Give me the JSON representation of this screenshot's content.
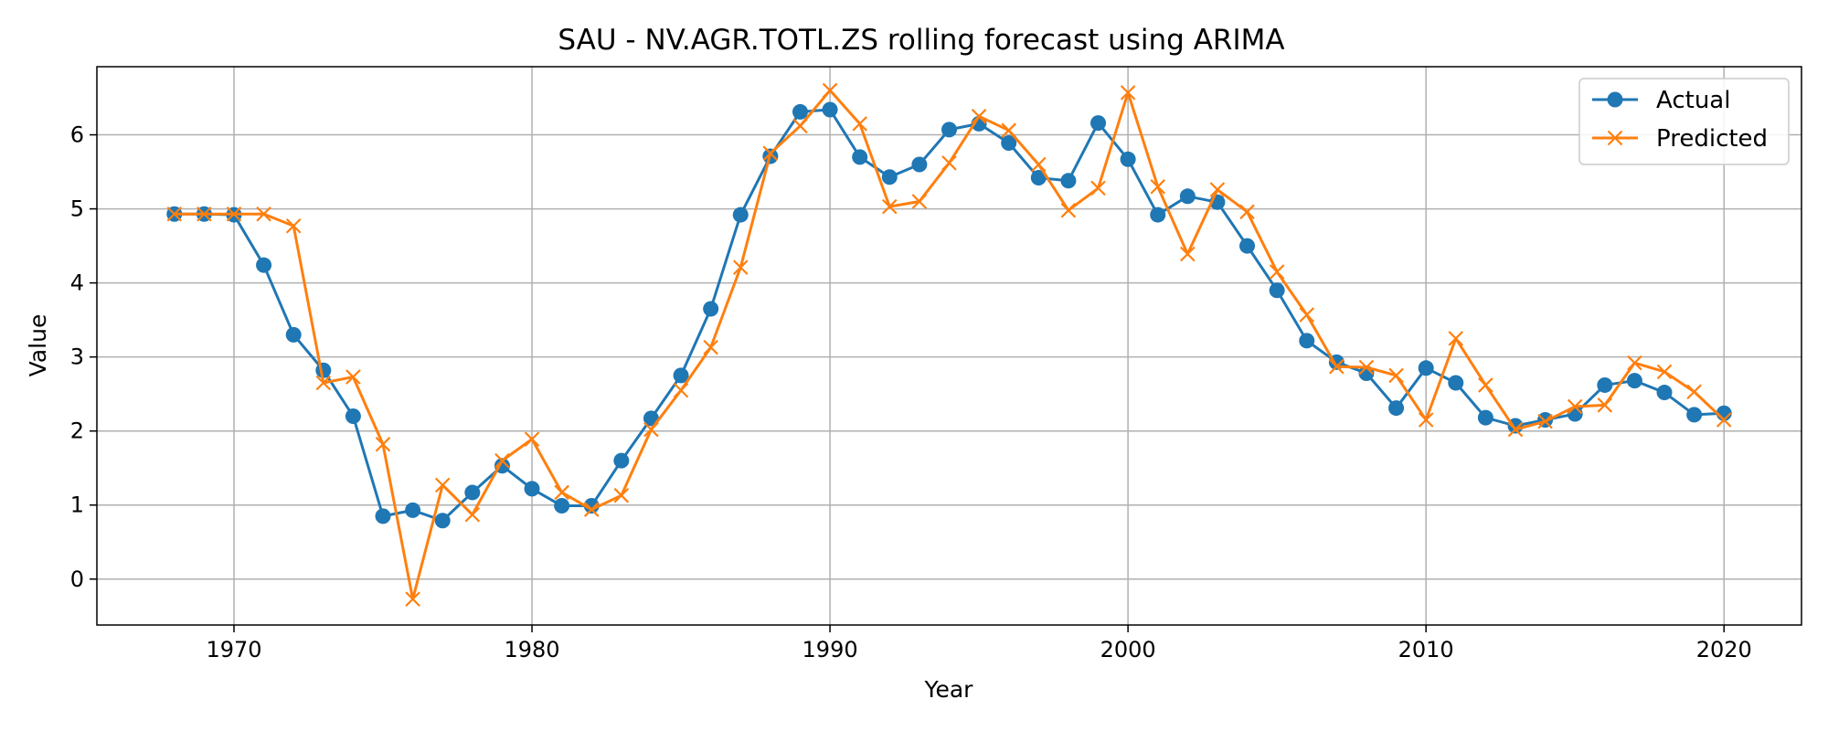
{
  "chart_data": {
    "type": "line",
    "title": "SAU - NV.AGR.TOTL.ZS rolling forecast using ARIMA",
    "xlabel": "Year",
    "ylabel": "Value",
    "xlim": [
      1965.4,
      2022.6
    ],
    "ylim": [
      -0.62,
      6.92
    ],
    "xticks": [
      1970,
      1980,
      1990,
      2000,
      2010,
      2020
    ],
    "yticks": [
      0,
      1,
      2,
      3,
      4,
      5,
      6
    ],
    "grid": true,
    "legend_position": "top-right",
    "x": [
      1968,
      1969,
      1970,
      1971,
      1972,
      1973,
      1974,
      1975,
      1976,
      1977,
      1978,
      1979,
      1980,
      1981,
      1982,
      1983,
      1984,
      1985,
      1986,
      1987,
      1988,
      1989,
      1990,
      1991,
      1992,
      1993,
      1994,
      1995,
      1996,
      1997,
      1998,
      1999,
      2000,
      2001,
      2002,
      2003,
      2004,
      2005,
      2006,
      2007,
      2008,
      2009,
      2010,
      2011,
      2012,
      2013,
      2014,
      2015,
      2016,
      2017,
      2018,
      2019,
      2020
    ],
    "series": [
      {
        "name": "Actual",
        "color": "#1f77b4",
        "marker": "circle",
        "values": [
          4.93,
          4.93,
          4.92,
          4.24,
          3.3,
          2.82,
          2.2,
          0.85,
          0.93,
          0.79,
          1.17,
          1.53,
          1.22,
          0.99,
          0.99,
          1.6,
          2.17,
          2.75,
          3.65,
          4.92,
          5.71,
          6.31,
          6.34,
          5.7,
          5.43,
          5.6,
          6.07,
          6.15,
          5.89,
          5.42,
          5.38,
          6.16,
          5.67,
          4.92,
          5.17,
          5.09,
          4.5,
          3.9,
          3.22,
          2.93,
          2.78,
          2.31,
          2.85,
          2.65,
          2.18,
          2.07,
          2.15,
          2.23,
          2.62,
          2.68,
          2.52,
          2.22,
          2.24
        ]
      },
      {
        "name": "Predicted",
        "color": "#ff7f0e",
        "marker": "x",
        "values": [
          4.93,
          4.93,
          4.93,
          4.93,
          4.77,
          2.65,
          2.73,
          1.82,
          -0.27,
          1.27,
          0.87,
          1.6,
          1.89,
          1.17,
          0.94,
          1.13,
          2.02,
          2.55,
          3.13,
          4.21,
          5.75,
          6.12,
          6.6,
          6.15,
          5.03,
          5.1,
          5.62,
          6.25,
          6.06,
          5.6,
          4.98,
          5.28,
          6.57,
          5.3,
          4.39,
          5.26,
          4.96,
          4.15,
          3.57,
          2.87,
          2.86,
          2.75,
          2.15,
          3.25,
          2.62,
          2.02,
          2.13,
          2.33,
          2.35,
          2.92,
          2.8,
          2.53,
          2.15
        ]
      }
    ]
  }
}
